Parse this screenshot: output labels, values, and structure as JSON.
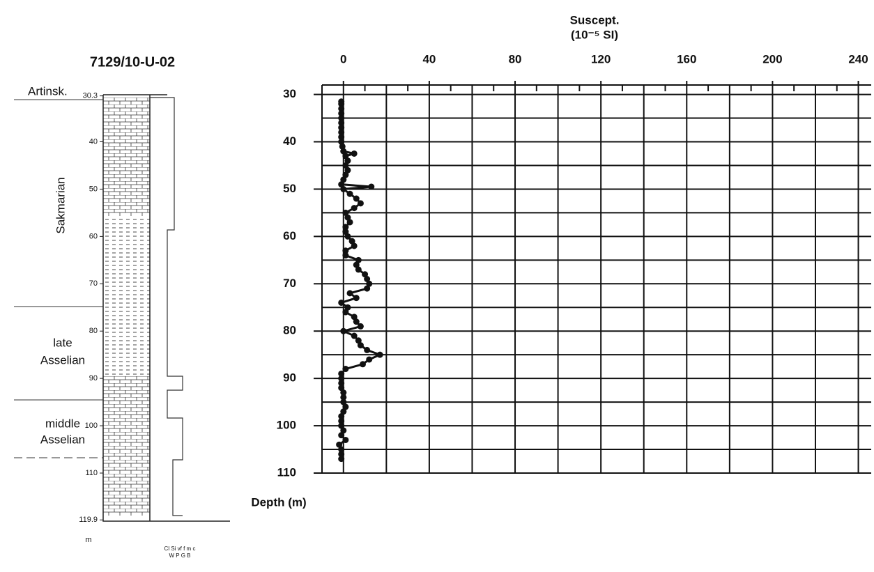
{
  "chart_data": {
    "type": "line",
    "x_label": "Suscept.",
    "x_unit_label": "(10⁻⁵ SI)",
    "y_label": "Depth (m)",
    "xlim": [
      -10,
      246
    ],
    "xticks": [
      0,
      40,
      80,
      120,
      160,
      200,
      240
    ],
    "xgrid": [
      0,
      20,
      40,
      60,
      80,
      100,
      120,
      140,
      160,
      180,
      200,
      220,
      240
    ],
    "xminor": [
      10,
      30,
      50,
      70,
      90,
      110,
      130,
      150,
      170,
      190,
      210,
      230
    ],
    "ylim": [
      28,
      110
    ],
    "y_inverted": true,
    "yticks": [
      30,
      40,
      50,
      60,
      70,
      80,
      90,
      100,
      110
    ],
    "ygrid": [
      30,
      35,
      40,
      45,
      50,
      55,
      60,
      65,
      70,
      75,
      80,
      85,
      90,
      95,
      100,
      105,
      110
    ],
    "color": "#111111",
    "depth": [
      31.5,
      32,
      33,
      34,
      35,
      36,
      37,
      38,
      39,
      40,
      41,
      42,
      42.5,
      43,
      44,
      45,
      46,
      47,
      48,
      49,
      49.5,
      50,
      51,
      52,
      53,
      54,
      55,
      56,
      57,
      58,
      59,
      60,
      61,
      62,
      63,
      64,
      65,
      66,
      67,
      68,
      69,
      70,
      71,
      72,
      73,
      74,
      75,
      76,
      77,
      78,
      79,
      80,
      81,
      82,
      83,
      84,
      85,
      86,
      87,
      88,
      89,
      90,
      91,
      92,
      93,
      94,
      95,
      96,
      97,
      98,
      99,
      100,
      101,
      102,
      103,
      104,
      105,
      106,
      107
    ],
    "values": [
      -1,
      -1,
      -1,
      -1,
      -1,
      -1,
      -1,
      -1,
      -1,
      -1,
      -0.5,
      0,
      5,
      1,
      2,
      1,
      2,
      1,
      0,
      -1,
      13,
      0,
      3,
      6,
      8,
      5,
      1,
      2,
      3,
      1,
      1,
      2,
      4,
      5,
      1,
      1,
      7,
      6,
      7,
      10,
      11,
      12,
      11,
      3,
      6,
      -1,
      2,
      1,
      5,
      6,
      8,
      0,
      5,
      7,
      8,
      11,
      17,
      12,
      9,
      1,
      -1,
      -1,
      -1,
      -1,
      0,
      0,
      0,
      1,
      0,
      -1,
      -1,
      -1,
      0,
      -1,
      1,
      -2,
      -1,
      -1,
      -1
    ]
  },
  "strat_column": {
    "title": "7129/10-U-02",
    "stages": [
      "Artinsk.",
      "Sakmarian",
      "late",
      "Asselian",
      "middle",
      "Asselian"
    ],
    "depth_ticks": [
      30.3,
      40,
      50,
      60,
      70,
      80,
      90,
      100,
      110,
      119.9
    ],
    "depth_unit": "m",
    "grain_row1": "Cl Si vf f m c",
    "grain_row2": "W P G B"
  }
}
